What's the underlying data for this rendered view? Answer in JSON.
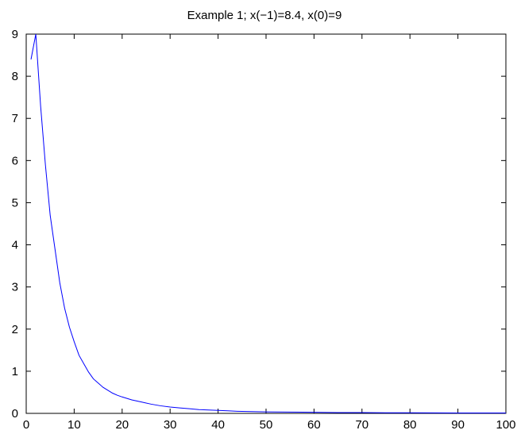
{
  "chart_data": {
    "type": "line",
    "title": "Example 1; x(−1)=8.4, x(0)=9",
    "xlabel": "",
    "ylabel": "",
    "xlim": [
      0,
      100
    ],
    "ylim": [
      0,
      9
    ],
    "xticks": [
      "0",
      "10",
      "20",
      "30",
      "40",
      "50",
      "60",
      "70",
      "80",
      "90",
      "100"
    ],
    "yticks": [
      "0",
      "1",
      "2",
      "3",
      "4",
      "5",
      "6",
      "7",
      "8",
      "9"
    ],
    "grid": false,
    "line_color": "#0000ff",
    "series": [
      {
        "x": [
          1,
          2,
          3,
          4,
          5,
          6,
          7,
          8,
          9,
          10,
          11,
          12,
          13,
          14,
          15,
          16,
          17,
          18,
          19,
          20,
          22,
          24,
          26,
          28,
          30,
          32,
          34,
          36,
          38,
          40,
          42,
          44,
          46,
          48,
          50,
          55,
          60,
          65,
          70,
          75,
          80,
          85,
          90,
          95,
          100
        ],
        "values": [
          8.4,
          9.0,
          7.3,
          5.9,
          4.7,
          3.9,
          3.1,
          2.5,
          2.05,
          1.7,
          1.38,
          1.18,
          0.98,
          0.82,
          0.72,
          0.62,
          0.55,
          0.48,
          0.43,
          0.39,
          0.32,
          0.27,
          0.22,
          0.18,
          0.15,
          0.13,
          0.11,
          0.09,
          0.08,
          0.07,
          0.06,
          0.05,
          0.045,
          0.04,
          0.035,
          0.03,
          0.025,
          0.02,
          0.02,
          0.015,
          0.015,
          0.012,
          0.01,
          0.01,
          0.01
        ]
      }
    ]
  }
}
